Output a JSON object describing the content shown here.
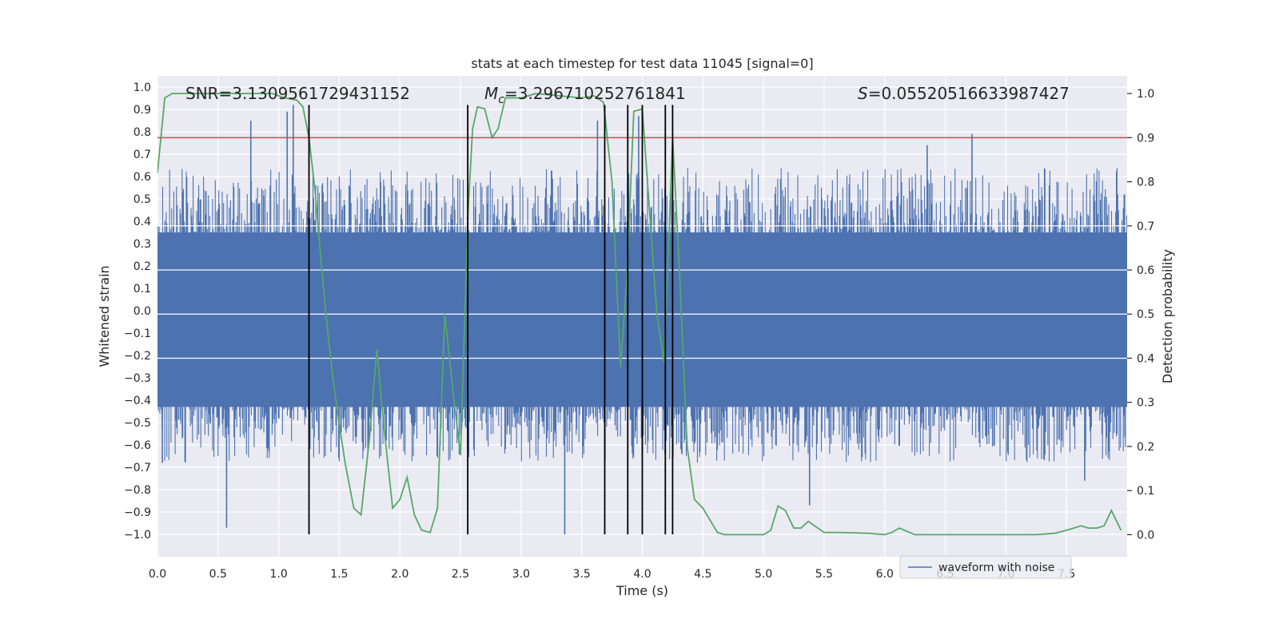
{
  "chart_data": {
    "type": "line",
    "title": "stats at each timestep for test data 11045 [signal=0]",
    "xlabel": "Time (s)",
    "ylabel": "Whitened strain",
    "y2label": "Detection probability",
    "xlim": [
      0,
      8
    ],
    "ylim": [
      -1.1,
      1.05
    ],
    "y2lim": [
      -0.05,
      1.04
    ],
    "grid": true,
    "legend_position": "lower-right",
    "x_ticks": [
      "0.0",
      "0.5",
      "1.0",
      "1.5",
      "2.0",
      "2.5",
      "3.0",
      "3.5",
      "4.0",
      "4.5",
      "5.0",
      "5.5",
      "6.0",
      "6.5",
      "7.0",
      "7.5"
    ],
    "y_ticks": [
      "1.0",
      "0.9",
      "0.8",
      "0.7",
      "0.6",
      "0.5",
      "0.4",
      "0.3",
      "0.2",
      "0.1",
      "0.0",
      "−0.1",
      "−0.2",
      "−0.3",
      "−0.4",
      "−0.5",
      "−0.6",
      "−0.7",
      "−0.8",
      "−0.9",
      "−1.0"
    ],
    "y2_ticks": [
      "1.0",
      "0.9",
      "0.8",
      "0.7",
      "0.6",
      "0.5",
      "0.4",
      "0.3",
      "0.2",
      "0.1",
      "0.0"
    ],
    "annotations": {
      "snr": "SNR=3.1309561729431152",
      "mc_symbol": "M",
      "mc_subscript": "c",
      "mc_value": "=3.296710252761841",
      "s_symbol": "S",
      "s_value": "=0.05520516633987427"
    },
    "legend": [
      "waveform with noise"
    ],
    "waveform": {
      "name": "waveform with noise",
      "color": "#4c72b0",
      "core_band": [
        -0.43,
        0.35
      ],
      "envelope_typical": [
        -0.65,
        0.6
      ],
      "spikes": [
        {
          "x": 0.57,
          "y": -0.97
        },
        {
          "x": 0.77,
          "y": 0.85
        },
        {
          "x": 1.07,
          "y": 0.89
        },
        {
          "x": 1.12,
          "y": 0.92
        },
        {
          "x": 3.63,
          "y": 0.85
        },
        {
          "x": 3.36,
          "y": -1.0
        },
        {
          "x": 3.97,
          "y": 0.87
        },
        {
          "x": 5.38,
          "y": -0.87
        },
        {
          "x": 6.72,
          "y": 0.79
        },
        {
          "x": 6.35,
          "y": 0.74
        },
        {
          "x": 7.65,
          "y": -0.76
        },
        {
          "x": 0.04,
          "y": -0.68
        }
      ]
    },
    "probability": {
      "name": "detection probability",
      "color": "#55a868",
      "x": [
        0,
        0.06,
        0.12,
        0.25,
        0.5,
        0.75,
        0.95,
        1.05,
        1.15,
        1.2,
        1.25,
        1.3,
        1.35,
        1.4,
        1.45,
        1.5,
        1.55,
        1.62,
        1.68,
        1.75,
        1.81,
        1.87,
        1.94,
        2.0,
        2.06,
        2.12,
        2.18,
        2.25,
        2.31,
        2.37,
        2.44,
        2.5,
        2.56,
        2.6,
        2.64,
        2.7,
        2.76,
        2.81,
        2.87,
        3.0,
        3.12,
        3.5,
        3.6,
        3.68,
        3.75,
        3.82,
        3.87,
        3.93,
        4.0,
        4.12,
        4.18,
        4.25,
        4.31,
        4.37,
        4.43,
        4.5,
        4.62,
        4.68,
        4.87,
        4.93,
        5.0,
        5.06,
        5.12,
        5.18,
        5.25,
        5.31,
        5.37,
        5.5,
        5.62,
        5.87,
        6.0,
        6.06,
        6.12,
        6.25,
        6.5,
        7.0,
        7.25,
        7.4,
        7.5,
        7.56,
        7.62,
        7.68,
        7.75,
        7.81,
        7.87,
        7.95
      ],
      "values": [
        0.82,
        0.99,
        1.0,
        1.0,
        1.0,
        1.0,
        1.0,
        0.99,
        0.985,
        0.97,
        0.9,
        0.78,
        0.62,
        0.47,
        0.35,
        0.25,
        0.16,
        0.06,
        0.045,
        0.22,
        0.42,
        0.24,
        0.06,
        0.08,
        0.13,
        0.045,
        0.01,
        0.005,
        0.06,
        0.5,
        0.32,
        0.18,
        0.72,
        0.92,
        0.97,
        0.965,
        0.9,
        0.92,
        0.99,
        0.99,
        1.0,
        0.99,
        0.995,
        0.98,
        0.8,
        0.38,
        0.57,
        0.96,
        0.965,
        0.5,
        0.39,
        0.9,
        0.58,
        0.2,
        0.08,
        0.06,
        0.005,
        0.0,
        0.0,
        0.0,
        0.0,
        0.01,
        0.065,
        0.055,
        0.015,
        0.015,
        0.03,
        0.005,
        0.005,
        0.003,
        0.0,
        0.005,
        0.015,
        0.0,
        0.0,
        0.0,
        0.0,
        0.003,
        0.01,
        0.015,
        0.02,
        0.015,
        0.015,
        0.02,
        0.055,
        0.01
      ]
    },
    "threshold": {
      "value": 0.9,
      "color": "#c44e52"
    },
    "vertical_lines": {
      "color": "#000000",
      "x": [
        1.25,
        2.56,
        3.69,
        3.88,
        4.0,
        4.19,
        4.25
      ]
    }
  }
}
